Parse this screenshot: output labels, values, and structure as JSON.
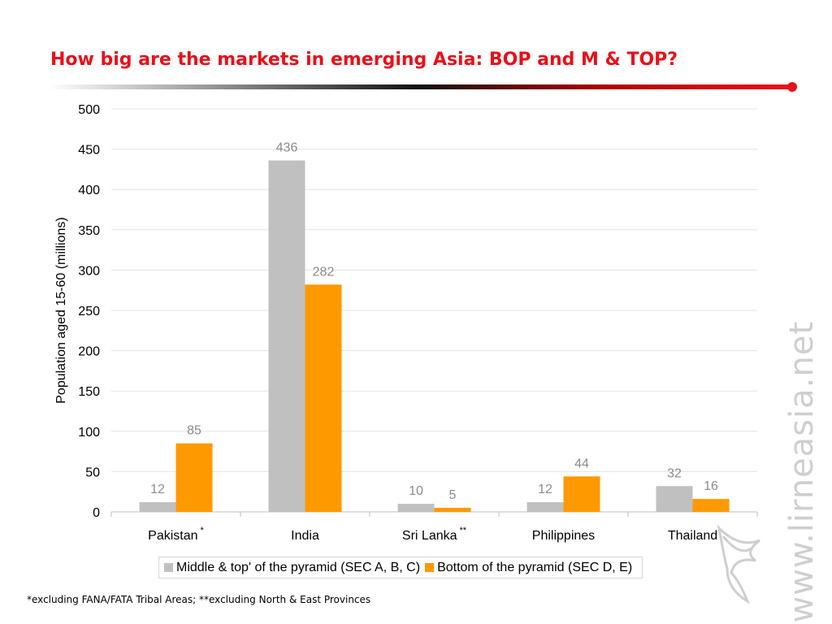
{
  "slide": {
    "title": "How big are the markets in emerging Asia:  BOP and M & TOP?",
    "footnote": "*excluding FANA/FATA  Tribal Areas; **excluding North & East Provinces",
    "watermark": "www.lirneasia.net",
    "accent_color": "#e8101a",
    "logo_icon": "lirneasia-bird-icon"
  },
  "chart_data": {
    "type": "bar",
    "title": "",
    "xlabel": "",
    "ylabel": "Population aged 15-60 (millions)",
    "ylim": [
      0,
      500
    ],
    "yticks": [
      0,
      50,
      100,
      150,
      200,
      250,
      300,
      350,
      400,
      450,
      500
    ],
    "grid": true,
    "legend_position": "bottom",
    "categories": [
      {
        "label": "Pakistan",
        "marker": "*"
      },
      {
        "label": "India",
        "marker": ""
      },
      {
        "label": "Sri Lanka",
        "marker": "**"
      },
      {
        "label": "Philippines",
        "marker": ""
      },
      {
        "label": "Thailand",
        "marker": ""
      }
    ],
    "series": [
      {
        "name": "Middle & top' of the pyramid (SEC A, B, C)",
        "color": "#c0c0c0",
        "values": [
          12,
          436,
          10,
          12,
          32
        ]
      },
      {
        "name": "Bottom of the pyramid (SEC D, E)",
        "color": "#ff9900",
        "values": [
          85,
          282,
          5,
          44,
          16
        ]
      }
    ]
  }
}
